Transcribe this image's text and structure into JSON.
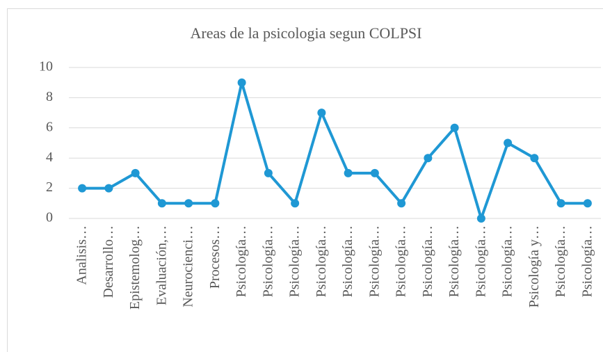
{
  "chart_data": {
    "type": "line",
    "title": "Areas de la psicologia segun COLPSI",
    "categories": [
      "Analisis…",
      "Desarrollo…",
      "Epistemolog…",
      "Evaluación,…",
      "Neurocienci…",
      "Procesos…",
      "Psicología…",
      "Psicología…",
      "Psicología…",
      "Psicología…",
      "Psicología…",
      "Psicología…",
      "Psicología…",
      "Psicología…",
      "Psicología…",
      "Psicología…",
      "Psicología…",
      "Psicología y…",
      "Psicología…",
      "Psicología…"
    ],
    "values": [
      2,
      2,
      3,
      1,
      1,
      1,
      9,
      3,
      1,
      7,
      3,
      3,
      1,
      4,
      6,
      0,
      5,
      4,
      1,
      1
    ],
    "color": "#1f98d4",
    "ylim": [
      0,
      10
    ],
    "yticks": [
      0,
      2,
      4,
      6,
      8,
      10
    ],
    "grid": true
  }
}
